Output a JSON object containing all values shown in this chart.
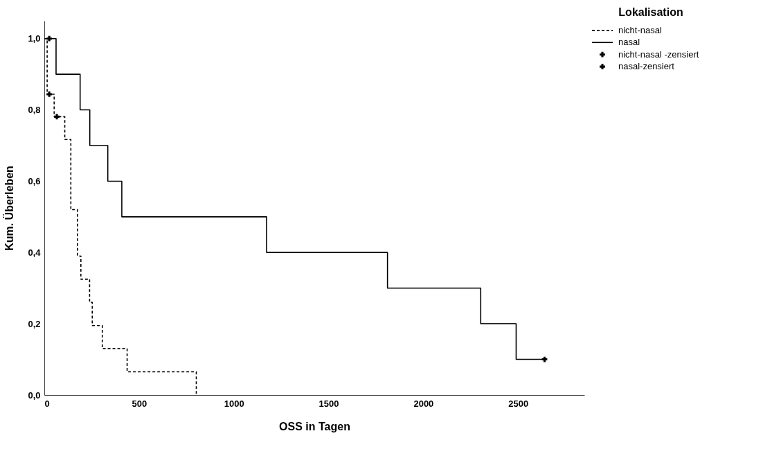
{
  "chart_data": {
    "type": "step",
    "xlabel": "OSS in Tagen",
    "ylabel": "Kum. Überleben",
    "legend_title": "Lokalisation",
    "legend": "top right",
    "grid": false,
    "xlim": [
      0,
      2850
    ],
    "xticks": [
      0,
      500,
      1000,
      1500,
      2000,
      2500
    ],
    "ylim": [
      0,
      1.05
    ],
    "yticks": [
      {
        "value": 0,
        "label": "0,0"
      },
      {
        "value": 0.2,
        "label": "0,2"
      },
      {
        "value": 0.4,
        "label": "0,4"
      },
      {
        "value": 0.6,
        "label": "0,6"
      },
      {
        "value": 0.8,
        "label": "0,8"
      },
      {
        "value": 1.0,
        "label": "1,0"
      }
    ],
    "series": [
      {
        "name": "nicht-nasal",
        "line_style": "dashed",
        "color": "#000000",
        "x": [
          0,
          15,
          52,
          108,
          140,
          175,
          193,
          239,
          253,
          306,
          437,
          802
        ],
        "values": [
          1.0,
          0.844,
          0.781,
          0.717,
          0.52,
          0.39,
          0.325,
          0.26,
          0.195,
          0.13,
          0.065,
          0.0
        ]
      },
      {
        "name": "nasal",
        "line_style": "solid",
        "color": "#000000",
        "x": [
          0,
          62,
          189,
          240,
          335,
          409,
          1173,
          1811,
          2303,
          2490,
          2640
        ],
        "values": [
          1.0,
          0.9,
          0.8,
          0.7,
          0.6,
          0.5,
          0.4,
          0.3,
          0.2,
          0.1,
          0.1
        ]
      },
      {
        "name": "nicht-nasal -zensiert",
        "type": "scatter",
        "marker": "cross",
        "color": "#000000",
        "x": [
          26,
          66
        ],
        "values": [
          0.844,
          0.781
        ]
      },
      {
        "name": "nasal-zensiert",
        "type": "scatter",
        "marker": "cross",
        "color": "#000000",
        "x": [
          26,
          2640
        ],
        "values": [
          1.0,
          0.1
        ]
      }
    ]
  }
}
